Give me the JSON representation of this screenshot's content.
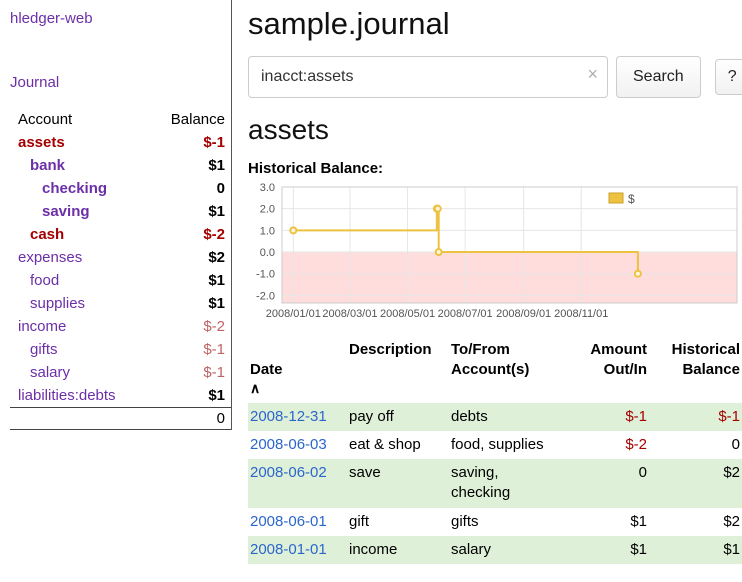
{
  "colors": {
    "accent_purple": "#6c2fa8",
    "negative_strong": "#a40000",
    "negative_soft": "#c06363",
    "link_blue": "#2a66cc",
    "row_highlight_green": "#dff0d8",
    "chart_line_gold": "#edc240",
    "chart_negative_region": "#ffdddd"
  },
  "sidebar": {
    "app_title": "hledger-web",
    "journal_link": "Journal",
    "accounts_table": {
      "headers": {
        "account": "Account",
        "balance": "Balance"
      },
      "rows": [
        {
          "name": "assets",
          "indent": 0,
          "balance": "$-1"
        },
        {
          "name": "bank",
          "indent": 1,
          "balance": "$1"
        },
        {
          "name": "checking",
          "indent": 2,
          "balance": "0"
        },
        {
          "name": "saving",
          "indent": 2,
          "balance": "$1"
        },
        {
          "name": "cash",
          "indent": 1,
          "balance": "$-2"
        },
        {
          "name": "expenses",
          "indent": 0,
          "balance": "$2"
        },
        {
          "name": "food",
          "indent": 1,
          "balance": "$1"
        },
        {
          "name": "supplies",
          "indent": 1,
          "balance": "$1"
        },
        {
          "name": "income",
          "indent": 0,
          "balance": "$-2"
        },
        {
          "name": "gifts",
          "indent": 1,
          "balance": "$-1"
        },
        {
          "name": "salary",
          "indent": 1,
          "balance": "$-1"
        },
        {
          "name": "liabilities:debts",
          "indent": 0,
          "balance": "$1"
        }
      ],
      "total": "0"
    }
  },
  "main": {
    "title": "sample.journal",
    "search": {
      "value": "inacct:assets",
      "clear_icon": "×",
      "button": "Search",
      "help_button": "?"
    },
    "account_heading": "assets",
    "chart_heading": "Historical Balance:",
    "register": {
      "headers": {
        "date": "Date",
        "sort_icon": "∧",
        "description": "Description",
        "accounts": "To/From\nAccount(s)",
        "amount": "Amount\nOut/In",
        "balance": "Historical\nBalance"
      },
      "rows": [
        {
          "date": "2008-12-31",
          "description": "pay off",
          "accounts": "debts",
          "amount": "$-1",
          "balance": "$-1"
        },
        {
          "date": "2008-06-03",
          "description": "eat & shop",
          "accounts": "food, supplies",
          "amount": "$-2",
          "balance": "0"
        },
        {
          "date": "2008-06-02",
          "description": "save",
          "accounts": "saving,\nchecking",
          "amount": "0",
          "balance": "$2"
        },
        {
          "date": "2008-06-01",
          "description": "gift",
          "accounts": "gifts",
          "amount": "$1",
          "balance": "$2"
        },
        {
          "date": "2008-01-01",
          "description": "income",
          "accounts": "salary",
          "amount": "$1",
          "balance": "$1"
        }
      ]
    }
  },
  "chart_data": {
    "type": "line",
    "title": "Historical Balance:",
    "step": true,
    "series": [
      {
        "name": "$",
        "color": "#edc240",
        "points": [
          [
            "2008-01-01",
            1
          ],
          [
            "2008-06-01",
            2
          ],
          [
            "2008-06-02",
            2
          ],
          [
            "2008-06-03",
            0
          ],
          [
            "2008-12-31",
            -1
          ]
        ]
      }
    ],
    "ylim": [
      -2.35,
      3.0
    ],
    "yticks": [
      3.0,
      2.0,
      1.0,
      0.0,
      -1.0,
      -2.0
    ],
    "xticks": [
      "2008/01/01",
      "2008/03/01",
      "2008/05/01",
      "2008/07/01",
      "2008/09/01",
      "2008/11/01"
    ],
    "x_range": [
      "2007-12-20",
      "2009-04-15"
    ],
    "negative_region_color": "#ffdddd",
    "grid": true,
    "legend": {
      "label": "$",
      "position": "ne"
    }
  }
}
